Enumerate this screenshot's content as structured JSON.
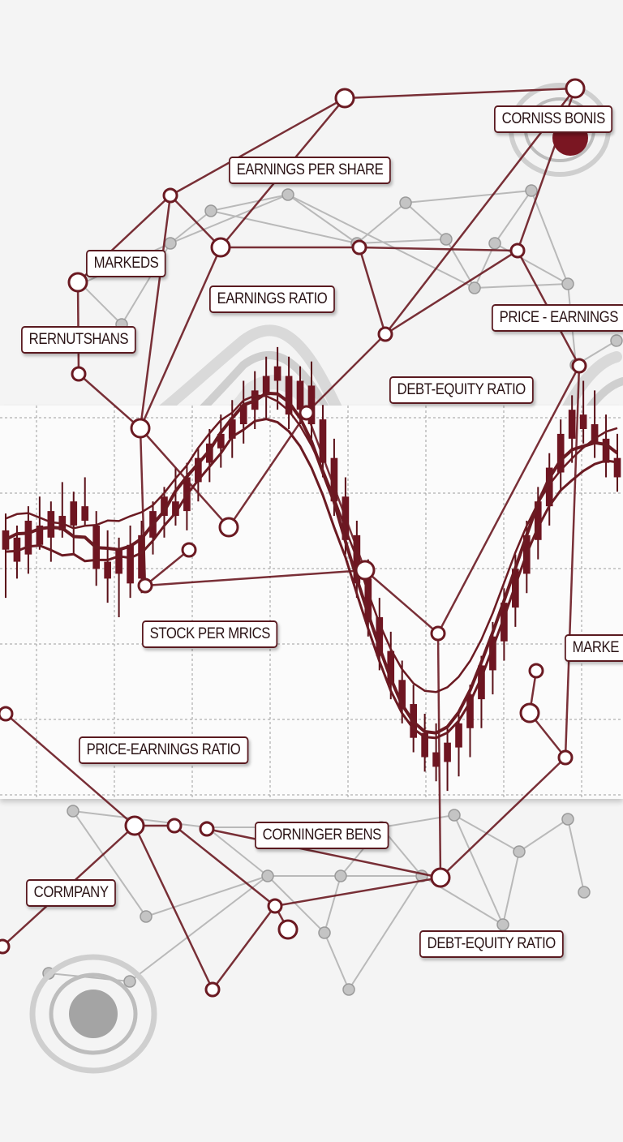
{
  "chart_data": {
    "type": "candlestick",
    "title": "",
    "xlabel": "",
    "ylabel": "",
    "grid": true,
    "colors": {
      "candle": "#6e1521",
      "wick": "#5a1018",
      "network_dark": "#6b1a22",
      "network_light": "#b9b9b9",
      "background": "#f4f4f4"
    },
    "candles": [
      {
        "o": 0.5,
        "h": 0.65,
        "l": 0.3,
        "c": 0.58
      },
      {
        "o": 0.55,
        "h": 0.6,
        "l": 0.38,
        "c": 0.45
      },
      {
        "o": 0.48,
        "h": 0.68,
        "l": 0.4,
        "c": 0.62
      },
      {
        "o": 0.6,
        "h": 0.72,
        "l": 0.5,
        "c": 0.52
      },
      {
        "o": 0.55,
        "h": 0.7,
        "l": 0.45,
        "c": 0.66
      },
      {
        "o": 0.64,
        "h": 0.78,
        "l": 0.55,
        "c": 0.58
      },
      {
        "o": 0.6,
        "h": 0.74,
        "l": 0.48,
        "c": 0.7
      },
      {
        "o": 0.68,
        "h": 0.8,
        "l": 0.6,
        "c": 0.62
      },
      {
        "o": 0.6,
        "h": 0.66,
        "l": 0.35,
        "c": 0.42
      },
      {
        "o": 0.45,
        "h": 0.58,
        "l": 0.28,
        "c": 0.38
      },
      {
        "o": 0.4,
        "h": 0.55,
        "l": 0.22,
        "c": 0.5
      },
      {
        "o": 0.52,
        "h": 0.6,
        "l": 0.3,
        "c": 0.36
      },
      {
        "o": 0.38,
        "h": 0.62,
        "l": 0.32,
        "c": 0.56
      },
      {
        "o": 0.55,
        "h": 0.7,
        "l": 0.48,
        "c": 0.66
      },
      {
        "o": 0.64,
        "h": 0.76,
        "l": 0.55,
        "c": 0.72
      },
      {
        "o": 0.7,
        "h": 0.84,
        "l": 0.6,
        "c": 0.64
      },
      {
        "o": 0.66,
        "h": 0.86,
        "l": 0.58,
        "c": 0.8
      },
      {
        "o": 0.78,
        "h": 0.92,
        "l": 0.7,
        "c": 0.88
      },
      {
        "o": 0.86,
        "h": 1.0,
        "l": 0.78,
        "c": 0.94
      },
      {
        "o": 0.92,
        "h": 1.06,
        "l": 0.84,
        "c": 0.98
      },
      {
        "o": 0.96,
        "h": 1.12,
        "l": 0.88,
        "c": 1.04
      },
      {
        "o": 1.02,
        "h": 1.2,
        "l": 0.94,
        "c": 1.1
      },
      {
        "o": 1.08,
        "h": 1.24,
        "l": 1.0,
        "c": 1.16
      },
      {
        "o": 1.14,
        "h": 1.3,
        "l": 1.04,
        "c": 1.22
      },
      {
        "o": 1.2,
        "h": 1.34,
        "l": 1.08,
        "c": 1.26
      },
      {
        "o": 1.22,
        "h": 1.3,
        "l": 1.0,
        "c": 1.06
      },
      {
        "o": 1.08,
        "h": 1.26,
        "l": 1.02,
        "c": 1.2
      },
      {
        "o": 1.18,
        "h": 1.28,
        "l": 0.96,
        "c": 1.02
      },
      {
        "o": 1.04,
        "h": 1.1,
        "l": 0.8,
        "c": 0.86
      },
      {
        "o": 0.88,
        "h": 0.96,
        "l": 0.64,
        "c": 0.7
      },
      {
        "o": 0.72,
        "h": 0.8,
        "l": 0.48,
        "c": 0.54
      },
      {
        "o": 0.56,
        "h": 0.62,
        "l": 0.3,
        "c": 0.36
      },
      {
        "o": 0.38,
        "h": 0.46,
        "l": 0.14,
        "c": 0.2
      },
      {
        "o": 0.22,
        "h": 0.3,
        "l": 0.0,
        "c": 0.06
      },
      {
        "o": 0.08,
        "h": 0.16,
        "l": -0.12,
        "c": -0.06
      },
      {
        "o": -0.04,
        "h": 0.04,
        "l": -0.22,
        "c": -0.16
      },
      {
        "o": -0.14,
        "h": -0.06,
        "l": -0.34,
        "c": -0.28
      },
      {
        "o": -0.26,
        "h": -0.18,
        "l": -0.42,
        "c": -0.36
      },
      {
        "o": -0.34,
        "h": -0.22,
        "l": -0.46,
        "c": -0.4
      },
      {
        "o": -0.38,
        "h": -0.24,
        "l": -0.5,
        "c": -0.3
      },
      {
        "o": -0.32,
        "h": -0.18,
        "l": -0.44,
        "c": -0.22
      },
      {
        "o": -0.24,
        "h": -0.06,
        "l": -0.36,
        "c": -0.1
      },
      {
        "o": -0.12,
        "h": 0.06,
        "l": -0.24,
        "c": 0.02
      },
      {
        "o": 0.0,
        "h": 0.2,
        "l": -0.1,
        "c": 0.14
      },
      {
        "o": 0.12,
        "h": 0.34,
        "l": 0.04,
        "c": 0.28
      },
      {
        "o": 0.26,
        "h": 0.48,
        "l": 0.18,
        "c": 0.42
      },
      {
        "o": 0.4,
        "h": 0.62,
        "l": 0.32,
        "c": 0.56
      },
      {
        "o": 0.54,
        "h": 0.76,
        "l": 0.46,
        "c": 0.7
      },
      {
        "o": 0.68,
        "h": 0.9,
        "l": 0.6,
        "c": 0.84
      },
      {
        "o": 0.82,
        "h": 1.04,
        "l": 0.74,
        "c": 0.98
      },
      {
        "o": 0.96,
        "h": 1.14,
        "l": 0.86,
        "c": 1.08
      },
      {
        "o": 1.06,
        "h": 1.2,
        "l": 0.94,
        "c": 1.0
      },
      {
        "o": 1.02,
        "h": 1.16,
        "l": 0.88,
        "c": 0.94
      },
      {
        "o": 0.96,
        "h": 1.06,
        "l": 0.8,
        "c": 0.86
      },
      {
        "o": 0.88,
        "h": 0.98,
        "l": 0.74,
        "c": 0.8
      }
    ],
    "annotations": [
      "CORNISS BONIS",
      "EARNINGS PER SHARE",
      "MARKEDS",
      "EARNINGS RATIO",
      "PRICE - EARNINGS",
      "RERNUTSHANS",
      "DEBT-EQUITY RATIO",
      "STOCK PER MRICS",
      "MARKE",
      "PRICE-EARNINGS RATIO",
      "CORNINGER BENS",
      "CORMPANY",
      "DEBT-EQUITY RATIO"
    ]
  }
}
